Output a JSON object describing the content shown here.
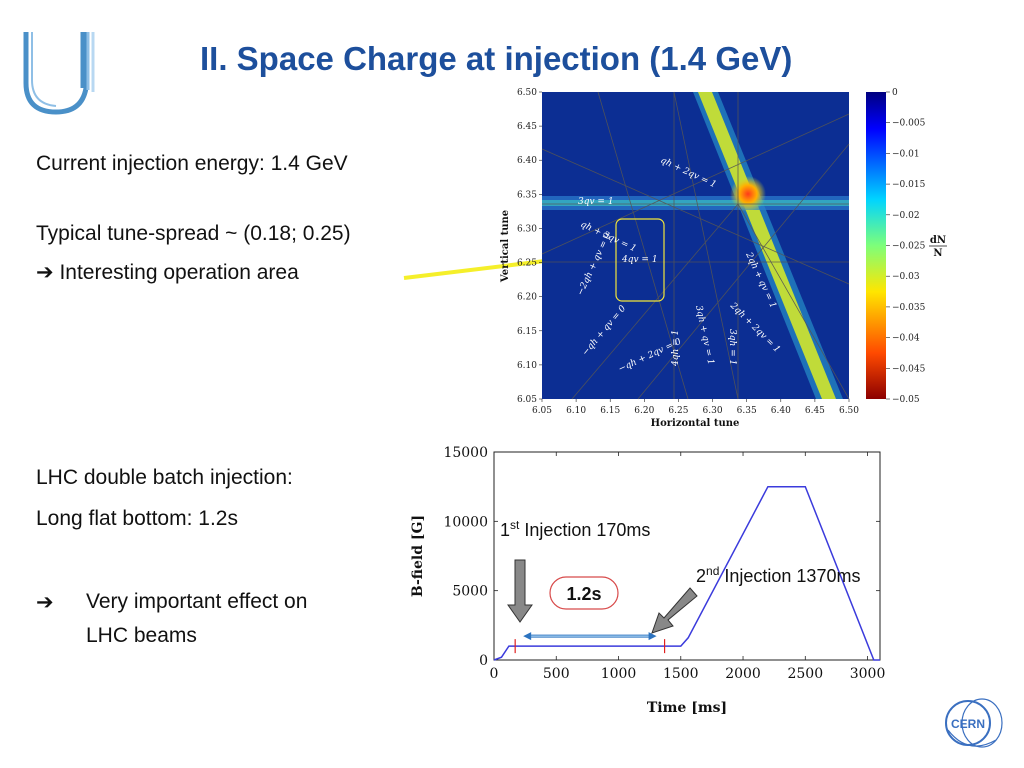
{
  "slide": {
    "title": "II. Space Charge at injection (1.4 GeV)",
    "bullets": {
      "current_energy": "Current injection energy: 1.4 GeV",
      "tune_spread": "Typical tune-spread ~ (0.18; 0.25)",
      "interesting_arrow": "➔",
      "interesting": "Interesting operation area",
      "lhc_double": "LHC double batch injection:",
      "long_flat": "Long flat bottom: 1.2s",
      "effect_arrow": "➔",
      "effect_line1": "Very important effect on",
      "effect_line2": "LHC beams"
    }
  },
  "tune_diagram": {
    "xlabel": "Horizontal tune",
    "ylabel": "Vertical tune",
    "x_ticks": [
      "6.05",
      "6.10",
      "6.15",
      "6.20",
      "6.25",
      "6.30",
      "6.35",
      "6.40",
      "6.45",
      "6.50"
    ],
    "y_ticks": [
      "6.50",
      "6.45",
      "6.40",
      "6.35",
      "6.30",
      "6.25",
      "6.20",
      "6.15",
      "6.10",
      "6.05"
    ],
    "colorbar_ticks": [
      "0",
      "−0.005",
      "−0.01",
      "−0.015",
      "−0.02",
      "−0.025",
      "−0.03",
      "−0.035",
      "−0.04",
      "−0.045",
      "−0.05"
    ],
    "colorbar_label_top": "dN",
    "colorbar_label_bottom": "N",
    "resonances": {
      "r1": "qh + 2qv = 1",
      "r2": "3qv = 1",
      "r3": "qh + 3qv = 1",
      "r4": "4qv = 1",
      "r5": "2qh + qv = 1",
      "r6": "−2qh + qv = 0",
      "r7": "−qh + qv = 0",
      "r8": "−qh + 2qv = 0",
      "r9": "4qh = 1",
      "r10": "3qh + qv = 1",
      "r11": "3qh = 1",
      "r12": "2qh + 2qv = 1"
    },
    "colors": {
      "background": "#0b2a8c",
      "high": "#c9e032",
      "peak": "#e8402a",
      "box": "#f2e63a"
    }
  },
  "chart_data": {
    "type": "line",
    "xlabel": "Time [ms]",
    "ylabel": "B-field [G]",
    "xlim": [
      0,
      3100
    ],
    "ylim": [
      0,
      15000
    ],
    "x_ticks": [
      0,
      500,
      1000,
      1500,
      2000,
      2500,
      3000
    ],
    "y_ticks": [
      0,
      5000,
      10000,
      15000
    ],
    "series": [
      {
        "x": [
          0,
          60,
          120,
          170,
          1370,
          1500,
          1560,
          2200,
          2500,
          3050,
          3100
        ],
        "y": [
          0,
          200,
          1000,
          1000,
          1000,
          1000,
          1600,
          12500,
          12500,
          0,
          0
        ]
      }
    ],
    "markers_x": [
      170,
      1370
    ],
    "line_color": "#3b3bdc",
    "annotations": {
      "inj1_prefix": "1",
      "inj1_sup": "st",
      "inj1_text": " Injection 170ms",
      "inj2_prefix": "2",
      "inj2_sup": "nd",
      "inj2_text": " Injection 1370ms",
      "flat_label": "1.2s"
    }
  },
  "logos": {
    "cern": "CERN"
  }
}
